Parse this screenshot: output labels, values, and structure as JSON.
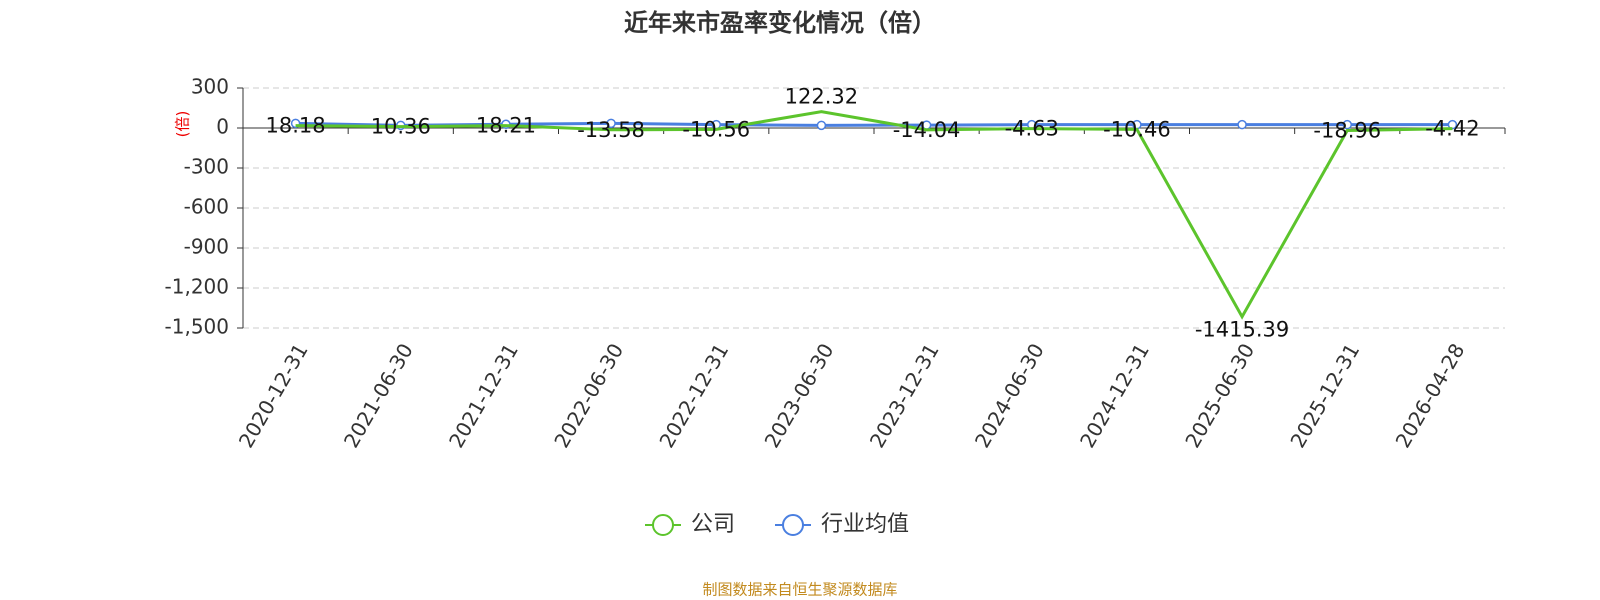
{
  "chart_data": {
    "type": "line",
    "title": "近年来市盈率变化情况（倍）",
    "y_label": "(倍)",
    "source": "制图数据来自恒生聚源数据库",
    "categories": [
      "2020-12-31",
      "2021-06-30",
      "2021-12-31",
      "2022-06-30",
      "2022-12-31",
      "2023-06-30",
      "2023-12-31",
      "2024-06-30",
      "2024-12-31",
      "2025-06-30",
      "2025-12-31",
      "2026-04-28"
    ],
    "series": [
      {
        "name": "公司",
        "color": "#5cc42c",
        "values": [
          18.18,
          10.36,
          18.21,
          -13.58,
          -10.56,
          122.32,
          -14.04,
          -4.63,
          -10.46,
          -1415.39,
          -18.96,
          -4.42
        ]
      },
      {
        "name": "行业均值",
        "color": "#4a7fe0",
        "values": [
          35,
          20,
          28,
          35,
          25,
          20,
          22,
          25,
          25,
          25,
          25,
          25
        ]
      }
    ],
    "ylim": [
      -1500,
      300
    ],
    "yticks": [
      300,
      0,
      -300,
      -600,
      -900,
      {
        "value": -1200,
        "label": "-1,200"
      },
      {
        "value": -1500,
        "label": "-1,500"
      }
    ],
    "grid": true
  }
}
